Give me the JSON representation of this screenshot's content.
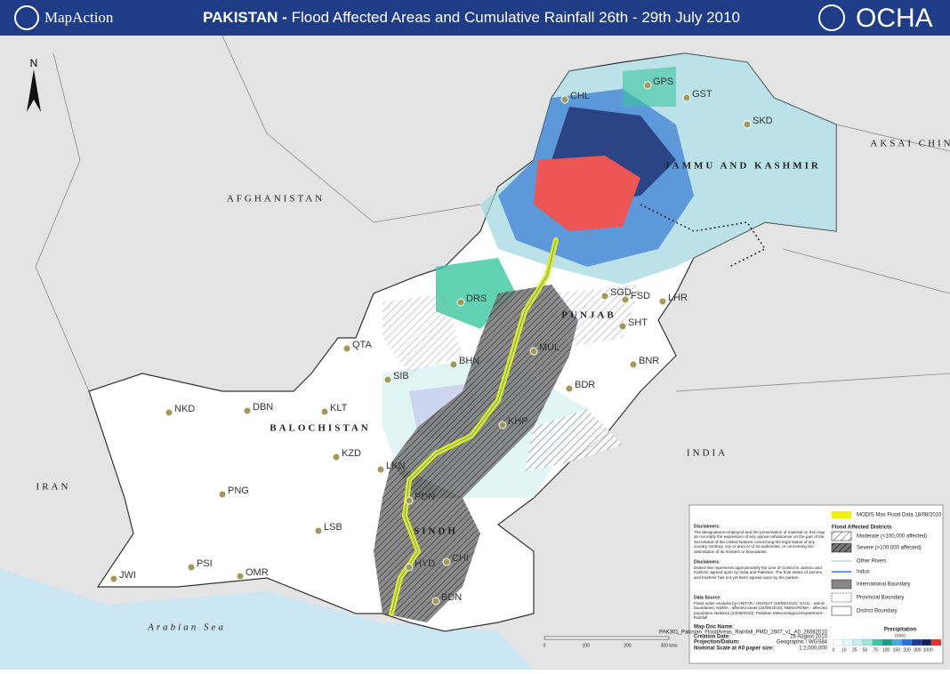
{
  "header": {
    "org": "MapAction",
    "title_bold": "PAKISTAN -",
    "title": "Flood Affected Areas and Cumulative Rainfall 26th - 29th July 2010",
    "partner": "OCHA"
  },
  "north": "N",
  "map_labels": [
    "AFGHANISTAN",
    "IRAN",
    "INDIA",
    "AKSAI CHIN",
    "Arabian Sea",
    "BALOCHISTAN",
    "PUNJAB",
    "SINDH",
    "JAMMU AND KASHMIR"
  ],
  "stations": [
    "CHL",
    "GPS",
    "GST",
    "SKD",
    "SGD",
    "FSD",
    "LHR",
    "SHT",
    "MUL",
    "BNR",
    "BDR",
    "DBN",
    "NKD",
    "KLT",
    "KZD",
    "PNG",
    "LSB",
    "PSI",
    "OMR",
    "JWI",
    "SIB",
    "QTA",
    "BHN",
    "KHP",
    "LKN",
    "PDN",
    "HYD",
    "CHI",
    "BDN",
    "DRS"
  ],
  "legend": {
    "modis": "MODIS Max Flood Data 18/08/2010",
    "districts_title": "Flood Affected Districts",
    "moderate": "Moderate (<100,000 affected)",
    "severe": "Severe (>100,000 affected)",
    "other_rivers": "Other Rivers",
    "indus": "Indus",
    "intl": "International Boundary",
    "prov": "Provincial Boundary",
    "district": "District Boundary",
    "precip_title": "Precipitation",
    "precip_unit": "(mm)",
    "precip_scale": [
      "0",
      "10",
      "25",
      "50",
      "75",
      "100",
      "150",
      "200",
      "300",
      "1000"
    ]
  },
  "disclaimers": [
    {
      "title": "Disclaimers:",
      "text": "The designations employed and the presentation of material on this map do not imply the expression of any opinion whatsoever on the part of the Secretariat of the United Nations concerning the legal status of any country, territory, city or area or of its authorities, or concerning the delimitation of its frontiers or boundaries."
    },
    {
      "title": "Disclaimers:",
      "text": "Dotted line represents approximately the Line of Control in Jammu and Kashmir agreed upon by India and Pakistan. The final status of Jammu and Kashmir has not yet been agreed upon by the parties."
    },
    {
      "title": "Data Source:",
      "text": "Flood water analysis by UNITAR / UNOSAT (18/08/2010); GAUL - admin boundaries; NDMA - affected areas (24/08/2010); NDMA/PDMA - affected population statistics (24/08/2010); Pakistan Meteorological Department - Rainfall"
    }
  ],
  "map_info": {
    "doc_label": "Map Doc Name:",
    "doc": "PAK301_Pakistan_FloodAreas_Rainfall_PMD_2607_v1_A0_26082010",
    "date_label": "Creation Date:",
    "date": "26 August 2010",
    "proj_label": "Projection/Datum:",
    "proj": "Geographic / WGS84",
    "scale_label": "Nominal Scale at A0 paper size:",
    "scale": "1:2,000,000"
  },
  "scale_bar": [
    "0",
    "100",
    "200",
    "300 kms"
  ]
}
